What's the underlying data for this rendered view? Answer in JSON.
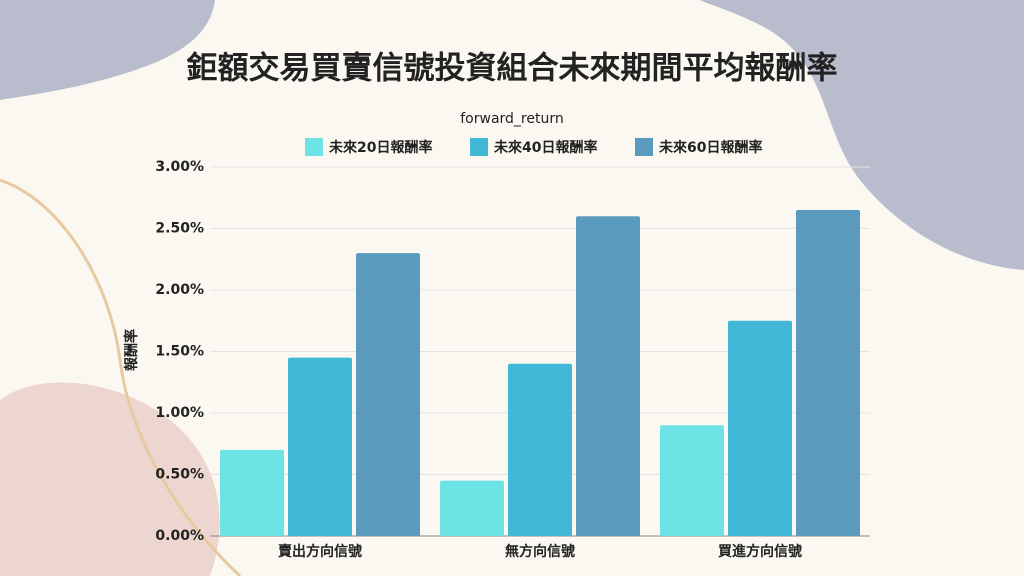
{
  "chart_data": {
    "type": "bar",
    "title": "鉅額交易買賣信號投資組合未來期間平均報酬率",
    "legend_title": "forward_return",
    "ylabel": "報酬率",
    "categories": [
      "賣出方向信號",
      "無方向信號",
      "買進方向信號"
    ],
    "series": [
      {
        "name": "未來20日報酬率",
        "color": "#6de3e6",
        "values": [
          0.7,
          0.45,
          0.9
        ]
      },
      {
        "name": "未來40日報酬率",
        "color": "#41b8d8",
        "values": [
          1.45,
          1.4,
          1.75
        ]
      },
      {
        "name": "未來60日報酬率",
        "color": "#5a9abd",
        "values": [
          2.3,
          2.6,
          2.65
        ]
      }
    ],
    "ylim": [
      0,
      3
    ],
    "yticks": [
      {
        "value": 0,
        "label": "0.00%"
      },
      {
        "value": 0.5,
        "label": "0.50%"
      },
      {
        "value": 1,
        "label": "1.00%"
      },
      {
        "value": 1.5,
        "label": "1.50%"
      },
      {
        "value": 2,
        "label": "2.00%"
      },
      {
        "value": 2.5,
        "label": "2.50%"
      },
      {
        "value": 3,
        "label": "3.00%"
      }
    ],
    "grid": true
  }
}
